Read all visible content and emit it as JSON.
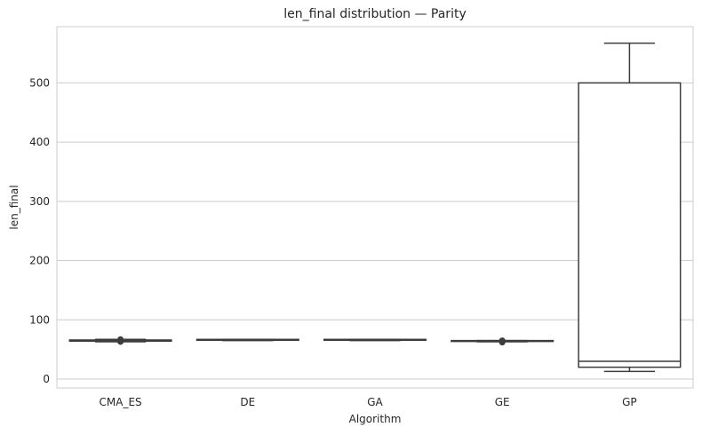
{
  "chart_data": {
    "type": "boxplot",
    "title": "len_final distribution — Parity",
    "xlabel": "Algorithm",
    "ylabel": "len_final",
    "categories": [
      "CMA_ES",
      "DE",
      "GA",
      "GE",
      "GP"
    ],
    "yticks": [
      0,
      100,
      200,
      300,
      400,
      500
    ],
    "ylim": [
      -15,
      595
    ],
    "grid": "horizontal",
    "boxes": [
      {
        "category": "CMA_ES",
        "q1": 64,
        "median": 65,
        "q3": 66,
        "whisker_low": 63,
        "whisker_high": 67,
        "outliers": [
          63,
          64,
          66,
          67
        ]
      },
      {
        "category": "DE",
        "q1": 65.5,
        "median": 66,
        "q3": 67,
        "whisker_low": 65,
        "whisker_high": 67,
        "outliers": []
      },
      {
        "category": "GA",
        "q1": 65.5,
        "median": 66,
        "q3": 67,
        "whisker_low": 65,
        "whisker_high": 67,
        "outliers": []
      },
      {
        "category": "GE",
        "q1": 63.5,
        "median": 64,
        "q3": 65,
        "whisker_low": 63,
        "whisker_high": 65,
        "outliers": [
          62,
          63,
          65
        ]
      },
      {
        "category": "GP",
        "q1": 20,
        "median": 30,
        "q3": 500,
        "whisker_low": 13,
        "whisker_high": 567,
        "outliers": []
      }
    ],
    "colors": {
      "box_edge": "#3d3d3d",
      "grid": "#cccccc",
      "axes_edge": "#cccccc",
      "text": "#262626"
    }
  }
}
